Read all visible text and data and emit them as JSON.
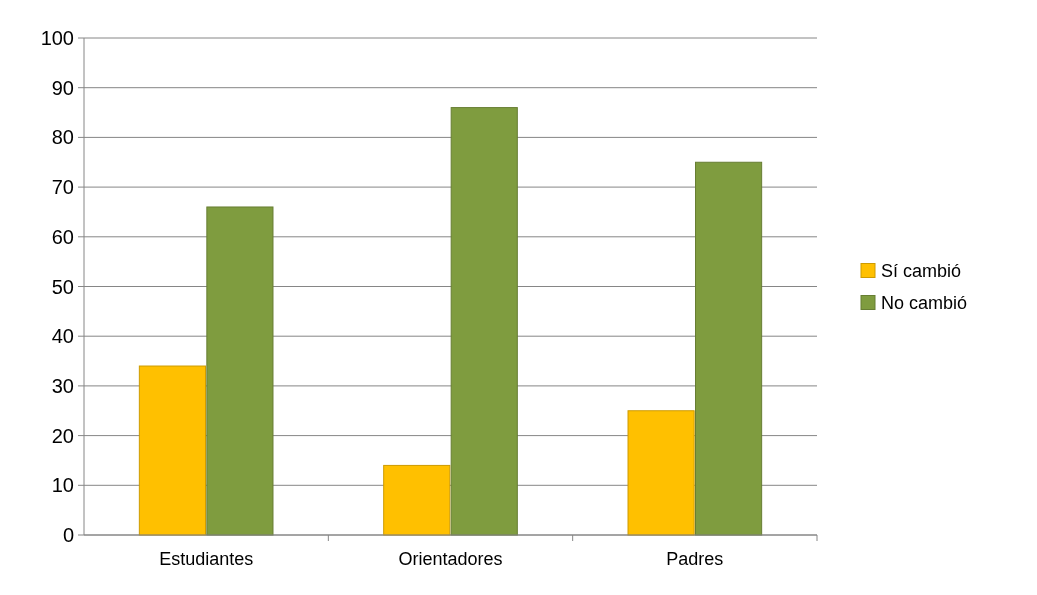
{
  "chart_data": {
    "type": "bar",
    "categories": [
      "Estudiantes",
      "Orientadores",
      "Padres"
    ],
    "series": [
      {
        "name": "Sí cambió",
        "color": "#ffc000",
        "values": [
          34,
          14,
          25
        ]
      },
      {
        "name": "No cambió",
        "color": "#7f9c3f",
        "values": [
          66,
          86,
          75
        ]
      }
    ],
    "ylim": [
      0,
      100
    ],
    "yticks": [
      0,
      10,
      20,
      30,
      40,
      50,
      60,
      70,
      80,
      90,
      100
    ],
    "grid": "y",
    "legend": "right"
  }
}
